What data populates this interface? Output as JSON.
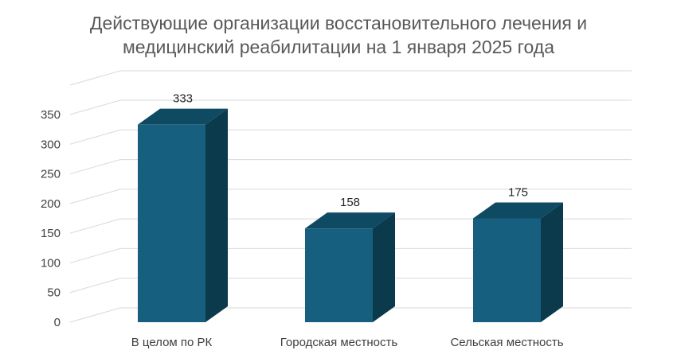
{
  "chart_data": {
    "type": "bar",
    "title": "Действующие организации восстановительного лечения и медицинский реабилитации на 1 января 2025 года",
    "title_lines": [
      "Действующие организации восстановительного лечения и",
      "медицинский реабилитации на 1 января 2025 года"
    ],
    "categories": [
      "В целом по РК",
      "Городская местность",
      "Сельская местность"
    ],
    "values": [
      333,
      158,
      175
    ],
    "data_labels": [
      "333",
      "158",
      "175"
    ],
    "yticks": [
      "0",
      "50",
      "100",
      "150",
      "200",
      "250",
      "300",
      "350"
    ],
    "ylim": [
      0,
      350
    ],
    "xlabel": "",
    "ylabel": "",
    "grid": true,
    "legend": "none",
    "style": "3d-column",
    "colors": {
      "bar_front": "#175f7e",
      "bar_top": "#0f4a63",
      "bar_side": "#0b3a4d",
      "grid": "#d9d9d9",
      "text": "#404040",
      "title": "#595959"
    }
  }
}
